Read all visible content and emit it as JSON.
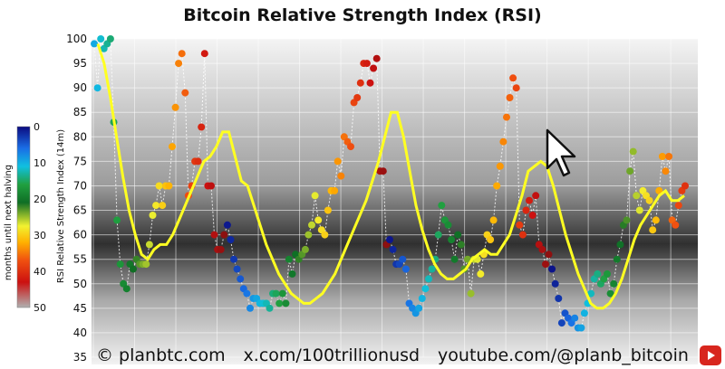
{
  "chart_data": {
    "type": "scatter",
    "title": "Bitcoin Relative Strength Index (RSI)",
    "ylabel": "RSI Relative Strength Index (14m)",
    "ylim": [
      35,
      100
    ],
    "yticks": [
      35,
      40,
      45,
      50,
      55,
      60,
      65,
      70,
      75,
      80,
      85,
      90,
      95,
      100
    ],
    "grid": true,
    "colorbar": {
      "label": "months until next halving",
      "range": [
        0,
        50
      ],
      "ticks": [
        0,
        10,
        20,
        30,
        40,
        50
      ],
      "colors": [
        "#0b0b80",
        "#1a6ee6",
        "#10c0e0",
        "#20a040",
        "#0f6e25",
        "#f2f230",
        "#ffb000",
        "#f05010",
        "#cc1010",
        "#b0b0b0"
      ]
    },
    "series": [
      {
        "type": "scatter",
        "values": [
          99,
          90,
          100,
          98,
          99,
          100,
          83,
          63,
          54,
          50,
          49,
          54,
          53,
          55,
          54,
          54,
          54,
          58,
          64,
          66,
          70,
          66,
          70,
          70,
          78,
          86,
          95,
          97,
          89,
          68,
          70,
          75,
          75,
          82,
          97,
          70,
          70,
          60,
          57,
          57,
          60,
          62,
          59,
          55,
          53,
          51,
          49,
          48,
          45,
          47,
          47,
          46,
          46,
          46,
          45,
          48,
          48,
          46,
          48,
          46,
          55,
          52,
          56,
          55,
          56,
          57,
          60,
          62,
          68,
          63,
          61,
          60,
          65,
          69,
          69,
          75,
          72,
          80,
          79,
          78,
          87,
          88,
          91,
          95,
          95,
          91,
          94,
          96,
          73,
          73,
          58,
          59,
          57,
          54,
          54,
          55,
          53,
          46,
          45,
          44,
          45,
          47,
          49,
          51,
          53,
          55,
          60,
          66,
          63,
          62,
          59,
          55,
          60,
          58,
          53,
          55,
          48,
          55,
          55,
          52,
          56,
          60,
          59,
          63,
          70,
          74,
          79,
          84,
          88,
          92,
          90,
          62,
          60,
          65,
          67,
          64,
          68,
          58,
          57,
          54,
          56,
          53,
          50,
          47,
          42,
          44,
          43,
          42,
          43,
          41,
          41,
          44,
          46,
          48,
          51,
          52,
          50,
          51,
          52,
          48,
          50,
          55,
          58,
          62,
          63,
          73,
          77,
          68,
          65,
          69,
          68,
          67,
          61,
          63,
          69,
          76,
          73,
          76,
          63,
          62,
          66,
          69,
          70
        ]
      },
      {
        "type": "line",
        "values": [
          99,
          95,
          88,
          80,
          72,
          65,
          60,
          56,
          55,
          57,
          58,
          58,
          60,
          63,
          66,
          69,
          72,
          75,
          76,
          78,
          81,
          81,
          76,
          71,
          70,
          66,
          62,
          58,
          55,
          52,
          50,
          48,
          47,
          46,
          46,
          47,
          48,
          50,
          52,
          55,
          58,
          61,
          64,
          67,
          71,
          75,
          80,
          85,
          85,
          80,
          73,
          66,
          61,
          57,
          54,
          52,
          51,
          51,
          52,
          53,
          55,
          56,
          57,
          56,
          56,
          58,
          60,
          64,
          68,
          73,
          74,
          75,
          74,
          70,
          65,
          60,
          56,
          52,
          49,
          46,
          45,
          45,
          46,
          48,
          51,
          55,
          59,
          62,
          64,
          66,
          68,
          69,
          67,
          67,
          68
        ]
      }
    ]
  },
  "footer": {
    "site": "© planbtc.com",
    "x_handle": "x.com/100trillionusd",
    "youtube": "youtube.com/@planb_bitcoin"
  },
  "icons": {
    "cursor": "cursor-icon",
    "youtube_logo": "youtube-logo-icon"
  }
}
